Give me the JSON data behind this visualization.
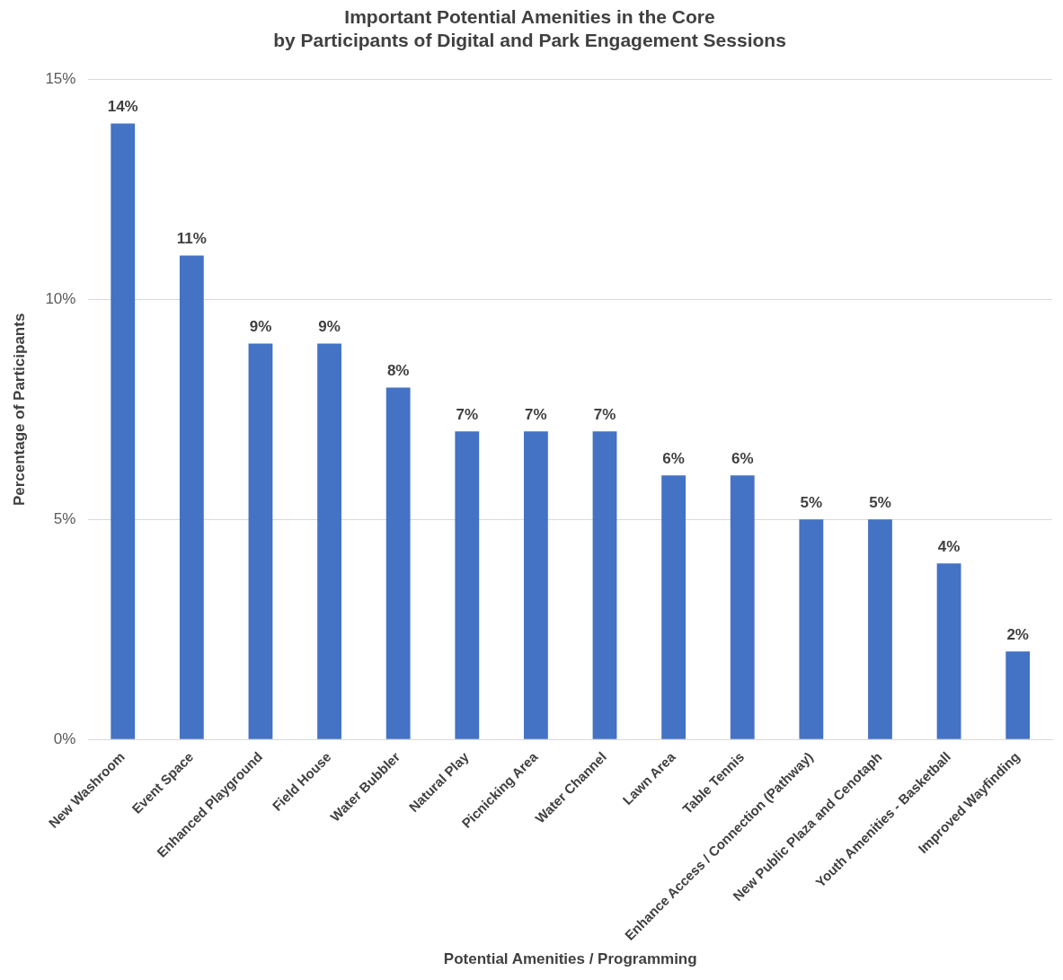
{
  "chart_data": {
    "type": "bar",
    "title": "Important Potential Amenities in the Core\nby Participants of Digital and Park Engagement Sessions",
    "xlabel": "Potential Amenities / Programming",
    "ylabel": "Percentage of Participants",
    "categories": [
      "New Washroom",
      "Event Space",
      "Enhanced Playground",
      "Field House",
      "Water Bubbler",
      "Natural Play",
      "Picnicking Area",
      "Water Channel",
      "Lawn Area",
      "Table Tennis",
      "Enhance Access / Connection (Pathway)",
      "New Public Plaza and Cenotaph",
      "Youth Amenities - Basketball",
      "Improved Wayfinding"
    ],
    "values": [
      14,
      11,
      9,
      9,
      8,
      7,
      7,
      7,
      6,
      6,
      5,
      5,
      4,
      2
    ],
    "value_labels": [
      "14%",
      "11%",
      "9%",
      "9%",
      "8%",
      "7%",
      "7%",
      "7%",
      "6%",
      "6%",
      "5%",
      "5%",
      "4%",
      "2%"
    ],
    "color": "#4472c4",
    "ylim": [
      0,
      15
    ],
    "yticks": [
      {
        "value": 0,
        "label": "0%"
      },
      {
        "value": 5,
        "label": "5%"
      },
      {
        "value": 10,
        "label": "10%"
      },
      {
        "value": 15,
        "label": "15%"
      }
    ],
    "grid": "y",
    "legend": false
  }
}
